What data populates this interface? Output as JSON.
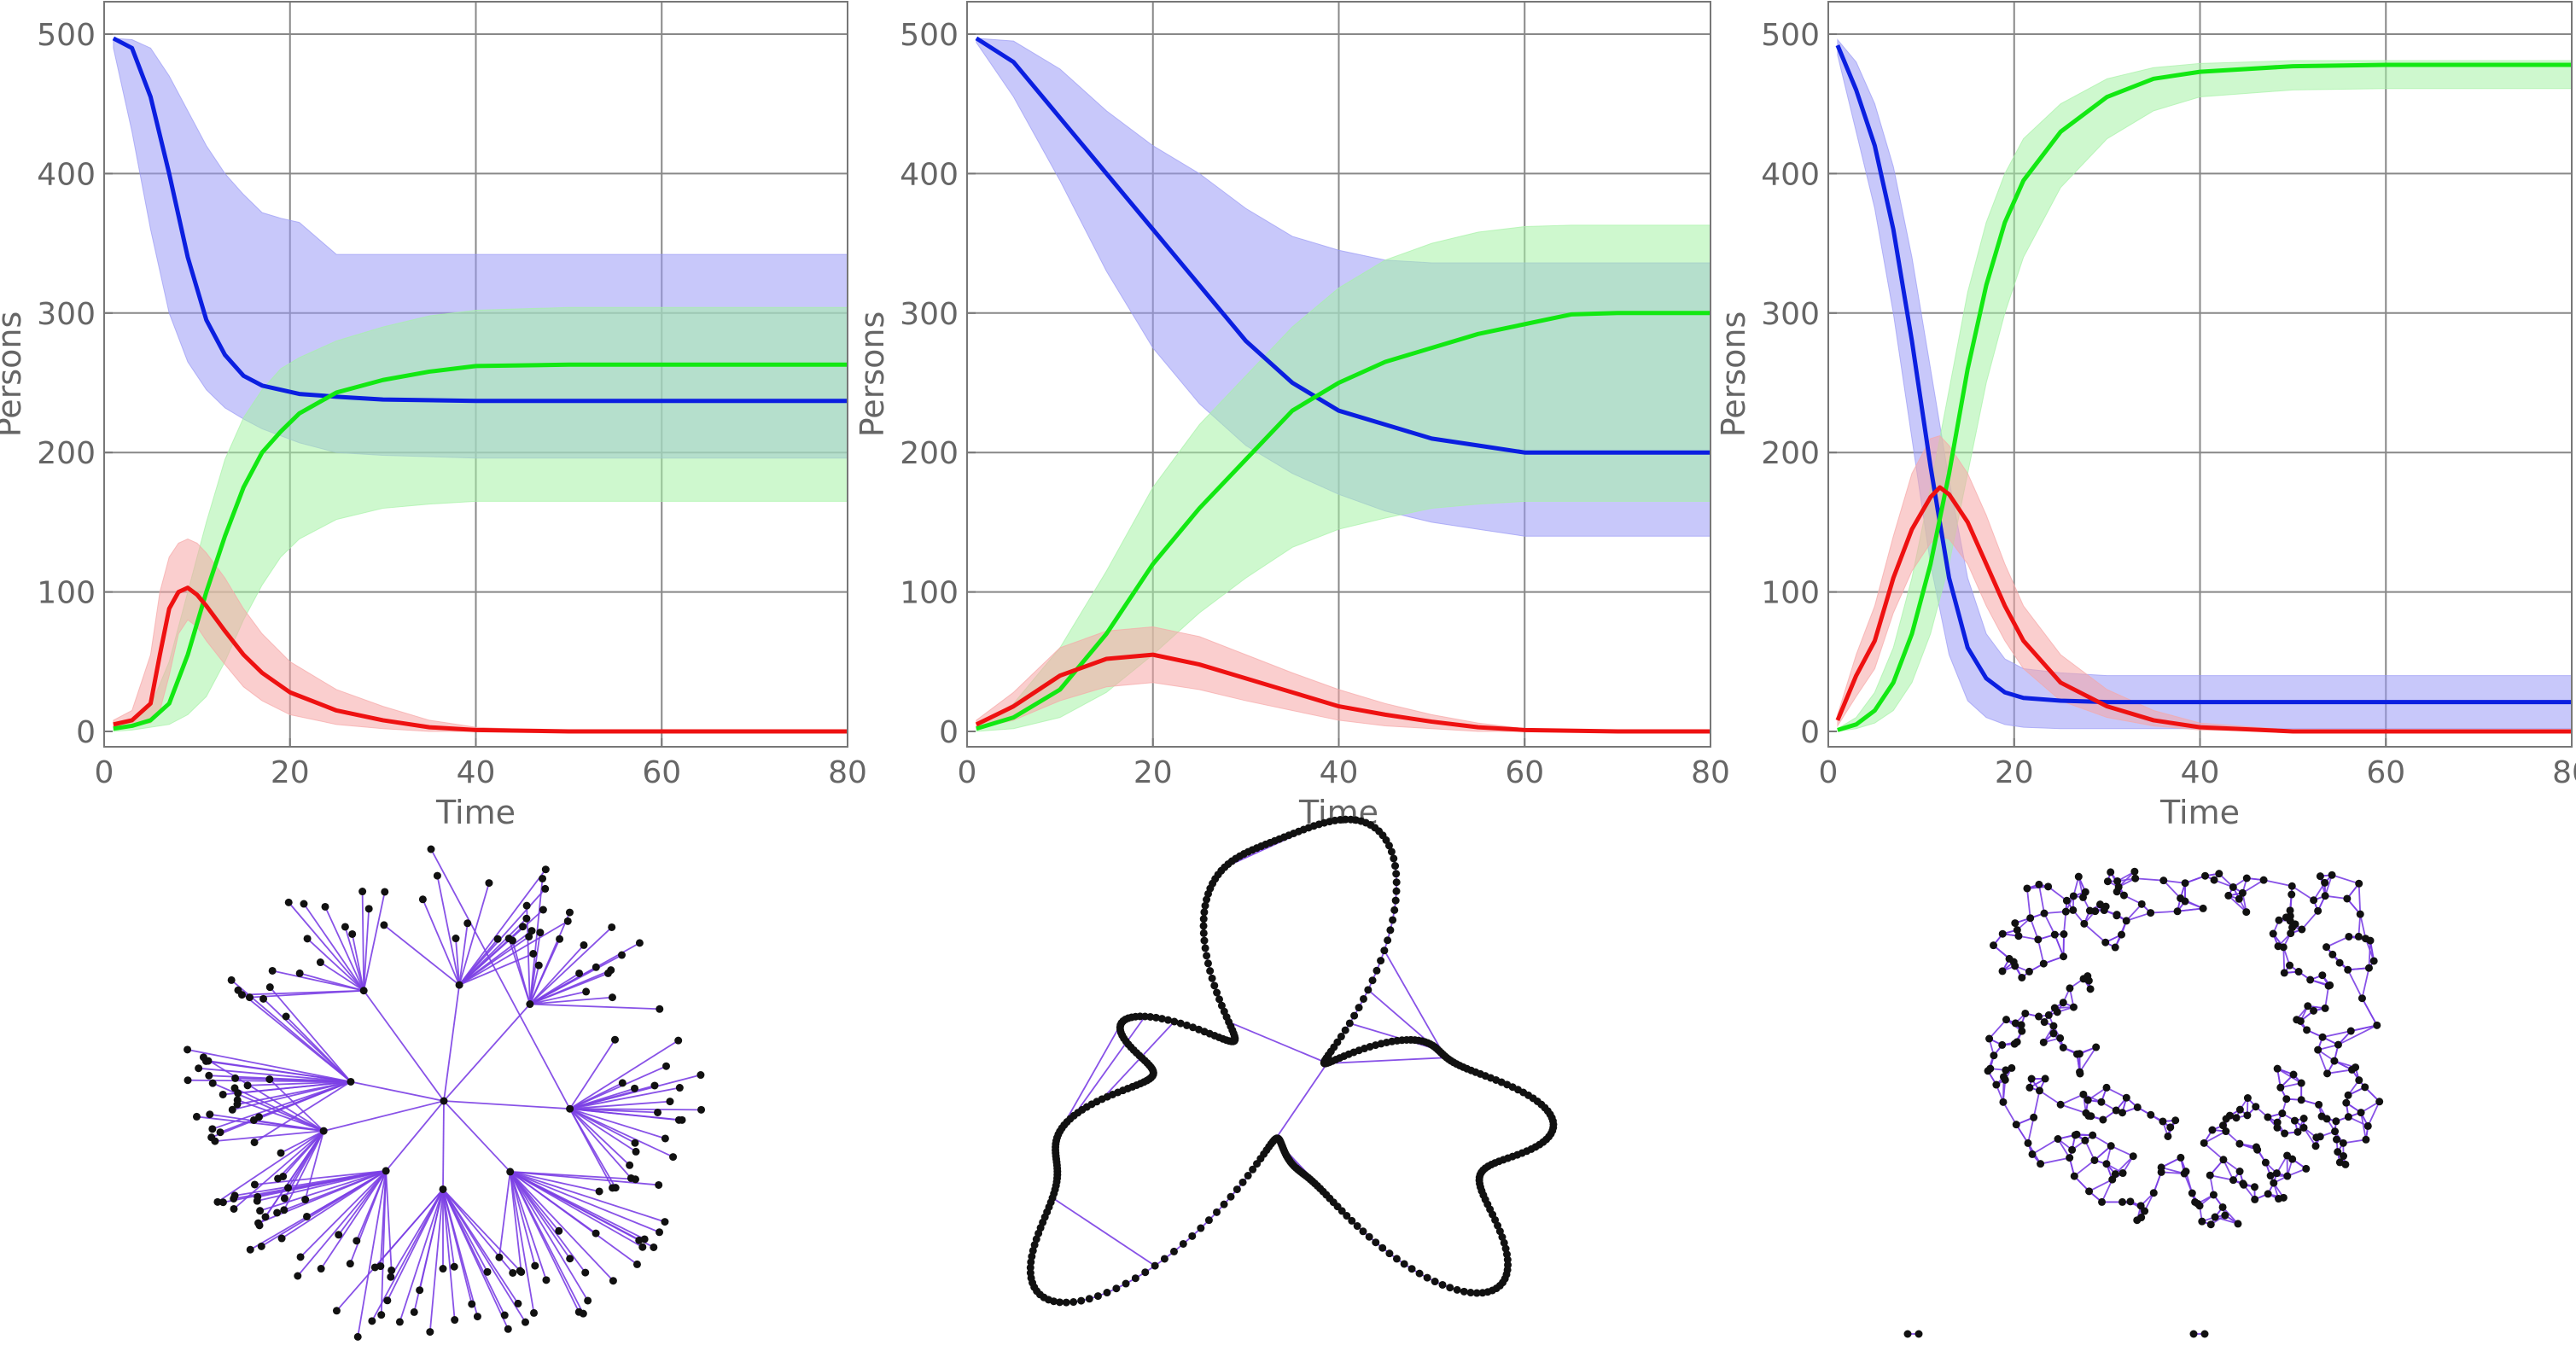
{
  "chart_data": [
    {
      "type": "line",
      "xlabel": "Time",
      "ylabel": "Persons",
      "xlim": [
        0,
        80
      ],
      "ylim": [
        0,
        500
      ],
      "xticks": [
        "0",
        "20",
        "40",
        "60",
        "80"
      ],
      "yticks": [
        "0",
        "100",
        "200",
        "300",
        "400",
        "500"
      ],
      "grid": true,
      "series": [
        {
          "color": "#0b1fe0",
          "band_color": "#9a9af5",
          "x": [
            1,
            3,
            5,
            7,
            9,
            11,
            13,
            15,
            17,
            19,
            21,
            25,
            30,
            40,
            50,
            60,
            70,
            80
          ],
          "values": [
            497,
            490,
            455,
            400,
            340,
            295,
            270,
            255,
            248,
            245,
            242,
            240,
            238,
            237,
            237,
            237,
            237,
            237
          ],
          "upper": [
            497,
            496,
            490,
            470,
            445,
            420,
            400,
            385,
            372,
            368,
            365,
            342,
            342,
            342,
            342,
            342,
            342,
            342
          ],
          "lower": [
            490,
            430,
            360,
            300,
            265,
            245,
            232,
            224,
            217,
            212,
            207,
            200,
            198,
            196,
            196,
            196,
            196,
            196
          ]
        },
        {
          "color": "#12e812",
          "band_color": "#a6f2a6",
          "x": [
            1,
            3,
            5,
            7,
            9,
            11,
            13,
            15,
            17,
            19,
            21,
            25,
            30,
            35,
            40,
            50,
            60,
            70,
            80
          ],
          "values": [
            2,
            4,
            8,
            20,
            55,
            100,
            140,
            175,
            200,
            215,
            228,
            243,
            252,
            258,
            262,
            263,
            263,
            263,
            263
          ],
          "upper": [
            4,
            8,
            18,
            50,
            100,
            150,
            195,
            225,
            245,
            260,
            268,
            280,
            290,
            298,
            302,
            304,
            304,
            304,
            304
          ],
          "lower": [
            0,
            1,
            3,
            5,
            12,
            25,
            50,
            80,
            105,
            125,
            138,
            152,
            160,
            163,
            165,
            165,
            165,
            165,
            165
          ]
        },
        {
          "color": "#ee1111",
          "band_color": "#f6a6a6",
          "x": [
            1,
            3,
            5,
            6,
            7,
            8,
            9,
            10,
            11,
            13,
            15,
            17,
            20,
            25,
            30,
            35,
            40,
            50,
            60,
            70,
            80
          ],
          "values": [
            5,
            8,
            20,
            55,
            88,
            100,
            103,
            98,
            90,
            72,
            55,
            42,
            28,
            15,
            8,
            3,
            1,
            0,
            0,
            0,
            0
          ],
          "upper": [
            8,
            15,
            55,
            100,
            125,
            135,
            138,
            135,
            128,
            110,
            88,
            70,
            50,
            30,
            18,
            8,
            3,
            0,
            0,
            0,
            0
          ],
          "lower": [
            3,
            4,
            6,
            15,
            40,
            70,
            80,
            75,
            65,
            48,
            32,
            22,
            12,
            5,
            2,
            0,
            0,
            0,
            0,
            0,
            0
          ]
        }
      ]
    },
    {
      "type": "line",
      "xlabel": "Time",
      "ylabel": "Persons",
      "xlim": [
        0,
        80
      ],
      "ylim": [
        0,
        500
      ],
      "xticks": [
        "0",
        "20",
        "40",
        "60",
        "80"
      ],
      "yticks": [
        "0",
        "100",
        "200",
        "300",
        "400",
        "500"
      ],
      "grid": true,
      "series": [
        {
          "color": "#0b1fe0",
          "band_color": "#9a9af5",
          "x": [
            1,
            5,
            10,
            15,
            20,
            25,
            30,
            35,
            40,
            45,
            50,
            55,
            60,
            70,
            80
          ],
          "values": [
            497,
            480,
            440,
            400,
            360,
            320,
            280,
            250,
            230,
            220,
            210,
            205,
            200,
            200,
            200
          ],
          "upper": [
            497,
            495,
            475,
            445,
            420,
            400,
            375,
            355,
            345,
            338,
            336,
            336,
            336,
            336,
            336
          ],
          "lower": [
            494,
            455,
            395,
            330,
            275,
            235,
            205,
            185,
            170,
            158,
            150,
            145,
            140,
            140,
            140
          ]
        },
        {
          "color": "#12e812",
          "band_color": "#a6f2a6",
          "x": [
            1,
            5,
            10,
            15,
            20,
            25,
            30,
            35,
            40,
            45,
            50,
            55,
            60,
            65,
            70,
            80
          ],
          "values": [
            2,
            10,
            30,
            70,
            120,
            160,
            195,
            230,
            250,
            265,
            275,
            285,
            292,
            299,
            300,
            300
          ],
          "upper": [
            4,
            20,
            60,
            115,
            175,
            220,
            255,
            290,
            318,
            338,
            350,
            358,
            362,
            363,
            363,
            363
          ],
          "lower": [
            0,
            2,
            10,
            28,
            55,
            85,
            110,
            132,
            145,
            153,
            160,
            163,
            165,
            165,
            165,
            165
          ]
        },
        {
          "color": "#ee1111",
          "band_color": "#f6a6a6",
          "x": [
            1,
            5,
            10,
            15,
            20,
            25,
            30,
            35,
            40,
            45,
            50,
            55,
            60,
            70,
            80
          ],
          "values": [
            5,
            18,
            40,
            52,
            55,
            48,
            38,
            28,
            18,
            12,
            7,
            3,
            1,
            0,
            0
          ],
          "upper": [
            8,
            28,
            60,
            72,
            75,
            68,
            55,
            42,
            30,
            20,
            12,
            6,
            2,
            0,
            0
          ],
          "lower": [
            2,
            8,
            22,
            32,
            35,
            30,
            22,
            15,
            8,
            4,
            2,
            0,
            0,
            0,
            0
          ]
        }
      ]
    },
    {
      "type": "line",
      "xlabel": "Time",
      "ylabel": "Persons",
      "xlim": [
        0,
        80
      ],
      "ylim": [
        0,
        500
      ],
      "xticks": [
        "0",
        "20",
        "40",
        "60",
        "80"
      ],
      "yticks": [
        "0",
        "100",
        "200",
        "300",
        "400",
        "500"
      ],
      "grid": true,
      "series": [
        {
          "color": "#0b1fe0",
          "band_color": "#9a9af5",
          "x": [
            1,
            3,
            5,
            7,
            9,
            11,
            13,
            15,
            17,
            19,
            21,
            25,
            30,
            40,
            50,
            60,
            70,
            80
          ],
          "values": [
            492,
            460,
            420,
            360,
            280,
            190,
            110,
            60,
            38,
            28,
            24,
            22,
            21,
            21,
            21,
            21,
            21,
            21
          ],
          "upper": [
            496,
            480,
            450,
            405,
            340,
            260,
            180,
            110,
            70,
            52,
            45,
            42,
            40,
            40,
            40,
            40,
            40,
            40
          ],
          "lower": [
            485,
            430,
            375,
            300,
            210,
            120,
            55,
            22,
            10,
            5,
            3,
            2,
            2,
            2,
            2,
            2,
            2,
            2
          ]
        },
        {
          "color": "#12e812",
          "band_color": "#a6f2a6",
          "x": [
            1,
            3,
            5,
            7,
            9,
            11,
            13,
            15,
            17,
            19,
            21,
            25,
            30,
            35,
            40,
            50,
            60,
            70,
            80
          ],
          "values": [
            1,
            5,
            15,
            35,
            70,
            120,
            185,
            260,
            320,
            365,
            395,
            430,
            455,
            468,
            473,
            477,
            478,
            478,
            478
          ],
          "upper": [
            2,
            10,
            28,
            60,
            110,
            175,
            245,
            315,
            365,
            400,
            425,
            450,
            468,
            476,
            479,
            481,
            481,
            481,
            481
          ],
          "lower": [
            0,
            2,
            6,
            15,
            35,
            70,
            120,
            185,
            250,
            300,
            340,
            390,
            425,
            445,
            455,
            460,
            461,
            461,
            461
          ]
        },
        {
          "color": "#ee1111",
          "band_color": "#f6a6a6",
          "x": [
            1,
            3,
            5,
            7,
            9,
            11,
            12,
            13,
            15,
            17,
            19,
            21,
            25,
            30,
            35,
            40,
            50,
            60,
            70,
            80
          ],
          "values": [
            8,
            40,
            65,
            110,
            145,
            168,
            175,
            170,
            150,
            120,
            90,
            65,
            35,
            18,
            8,
            3,
            0,
            0,
            0,
            0
          ],
          "upper": [
            12,
            55,
            90,
            140,
            185,
            210,
            212,
            205,
            185,
            155,
            120,
            90,
            55,
            30,
            15,
            6,
            1,
            0,
            0,
            0
          ],
          "lower": [
            4,
            25,
            45,
            85,
            115,
            135,
            140,
            138,
            120,
            90,
            65,
            45,
            22,
            10,
            4,
            1,
            0,
            0,
            0,
            0
          ]
        }
      ]
    }
  ],
  "graphs": [
    {
      "kind": "radial-tree",
      "edge_color": "#7b3fe4",
      "node_color": "#111111"
    },
    {
      "kind": "loopy-chain",
      "edge_color": "#7b3fe4",
      "node_color": "#111111"
    },
    {
      "kind": "mesh-network",
      "edge_color": "#7b3fe4",
      "node_color": "#111111"
    }
  ]
}
